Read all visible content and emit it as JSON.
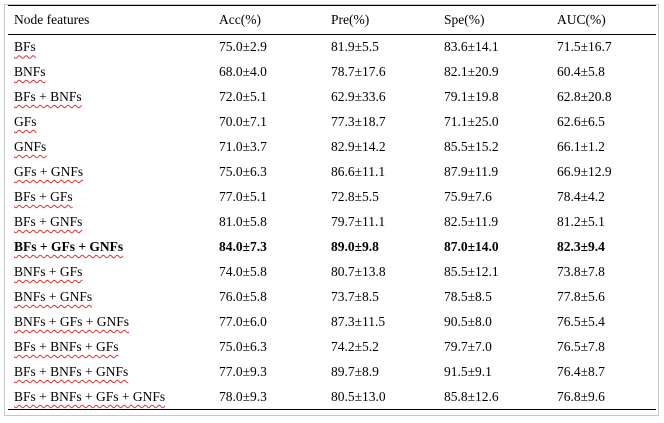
{
  "table": {
    "header": [
      "Node features",
      "Acc(%)",
      "Pre(%)",
      "Spe(%)",
      "AUC(%)"
    ],
    "rows": [
      [
        "BFs",
        "75.0±2.9",
        "81.9±5.5",
        "83.6±14.1",
        "71.5±16.7"
      ],
      [
        "BNFs",
        "68.0±4.0",
        "78.7±17.6",
        "82.1±20.9",
        "60.4±5.8"
      ],
      [
        "BFs + BNFs",
        "72.0±5.1",
        "62.9±33.6",
        "79.1±19.8",
        "62.8±20.8"
      ],
      [
        "GFs",
        "70.0±7.1",
        "77.3±18.7",
        "71.1±25.0",
        "62.6±6.5"
      ],
      [
        "GNFs",
        "71.0±3.7",
        "82.9±14.2",
        "85.5±15.2",
        "66.1±1.2"
      ],
      [
        "GFs + GNFs",
        "75.0±6.3",
        "86.6±11.1",
        "87.9±11.9",
        "66.9±12.9"
      ],
      [
        "BFs + GFs",
        "77.0±5.1",
        "72.8±5.5",
        "75.9±7.6",
        "78.4±4.2"
      ],
      [
        "BFs + GNFs",
        "81.0±5.8",
        "79.7±11.1",
        "82.5±11.9",
        "81.2±5.1"
      ],
      [
        "BFs + GFs + GNFs",
        "84.0±7.3",
        "89.0±9.8",
        "87.0±14.0",
        "82.3±9.4"
      ],
      [
        "BNFs + GFs",
        "74.0±5.8",
        "80.7±13.8",
        "85.5±12.1",
        "73.8±7.8"
      ],
      [
        "BNFs + GNFs",
        "76.0±5.8",
        "73.7±8.5",
        "78.5±8.5",
        "77.8±5.6"
      ],
      [
        "BNFs + GFs + GNFs",
        "77.0±6.0",
        "87.3±11.5",
        "90.5±8.0",
        "76.5±5.4"
      ],
      [
        "BFs + BNFs + GFs",
        "75.0±6.3",
        "74.2±5.2",
        "79.7±7.0",
        "76.5±7.8"
      ],
      [
        "BFs + BNFs + GNFs",
        "77.0±9.3",
        "89.7±8.9",
        "91.5±9.1",
        "76.4±8.7"
      ],
      [
        "BFs + BNFs + GFs + GNFs",
        "78.0±9.3",
        "80.5±13.0",
        "85.8±12.6",
        "76.8±9.6"
      ]
    ],
    "bold_rows": [
      8
    ]
  }
}
